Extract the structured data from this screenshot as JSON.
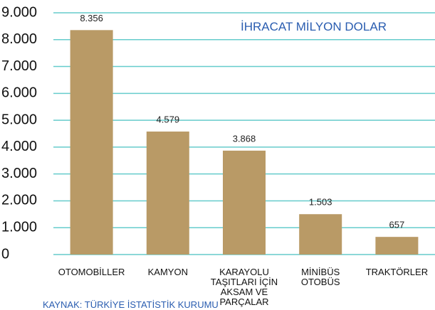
{
  "chart_data": {
    "type": "bar",
    "annotation": "İHRACAT MİLYON DOLAR",
    "source": "KAYNAK: TÜRKİYE İSTATİSTİK KURUMU",
    "categories": [
      "OTOMOBİLLER",
      "KAMYON",
      "KARAYOLU TAŞITLARI İÇİN AKSAM VE PARÇALAR",
      "MİNİBÜS OTOBÜS",
      "TRAKTÖRLER"
    ],
    "values": [
      8356,
      4579,
      3868,
      1503,
      657
    ],
    "value_labels": [
      "8.356",
      "4.579",
      "3.868",
      "1.503",
      "657"
    ],
    "color": "#b99a66",
    "ylim": [
      0,
      9000
    ],
    "yticks": [
      0,
      {
        "value": 1000,
        "label": "1.000"
      },
      {
        "value": 2000,
        "label": "2.000"
      },
      {
        "value": 3000,
        "label": "3.000"
      },
      {
        "value": 4000,
        "label": "4.000"
      },
      {
        "value": 5000,
        "label": "5.000"
      },
      {
        "value": 6000,
        "label": "6.000"
      },
      {
        "value": 7000,
        "label": "7.000"
      },
      {
        "value": 8000,
        "label": "8.000"
      },
      {
        "value": 9000,
        "label": "9.000"
      }
    ],
    "grid": true,
    "grid_color": "#66cccc"
  }
}
